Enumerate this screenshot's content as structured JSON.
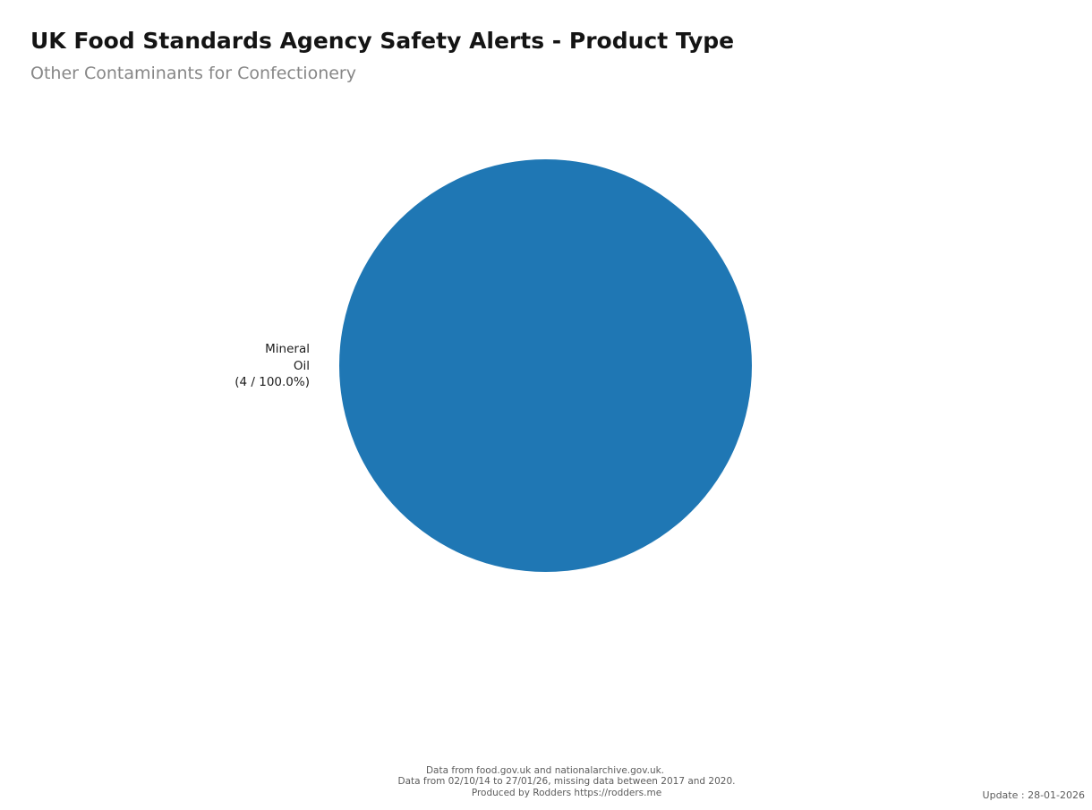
{
  "page": {
    "background_color": "#ffffff"
  },
  "header": {
    "title": "UK Food Standards Agency Safety Alerts - Product Type",
    "subtitle": "Other Contaminants for Confectionery"
  },
  "chart_data": {
    "type": "pie",
    "title": "UK Food Standards Agency Safety Alerts - Product Type",
    "subtitle": "Other Contaminants for Confectionery",
    "total": 4,
    "legend": "none",
    "slices": [
      {
        "label": "Mineral Oil",
        "value": 4,
        "percent": 100.0,
        "color": "#1f77b4",
        "label_lines": [
          "Mineral",
          "Oil",
          "(4 / 100.0%)"
        ]
      }
    ]
  },
  "footer": {
    "lines": [
      "Data from food.gov.uk and nationalarchive.gov.uk.",
      "Data from 02/10/14 to 27/01/26, missing data between 2017 and 2020.",
      "Produced by Rodders https://rodders.me"
    ],
    "update": "Update : 28-01-2026"
  }
}
